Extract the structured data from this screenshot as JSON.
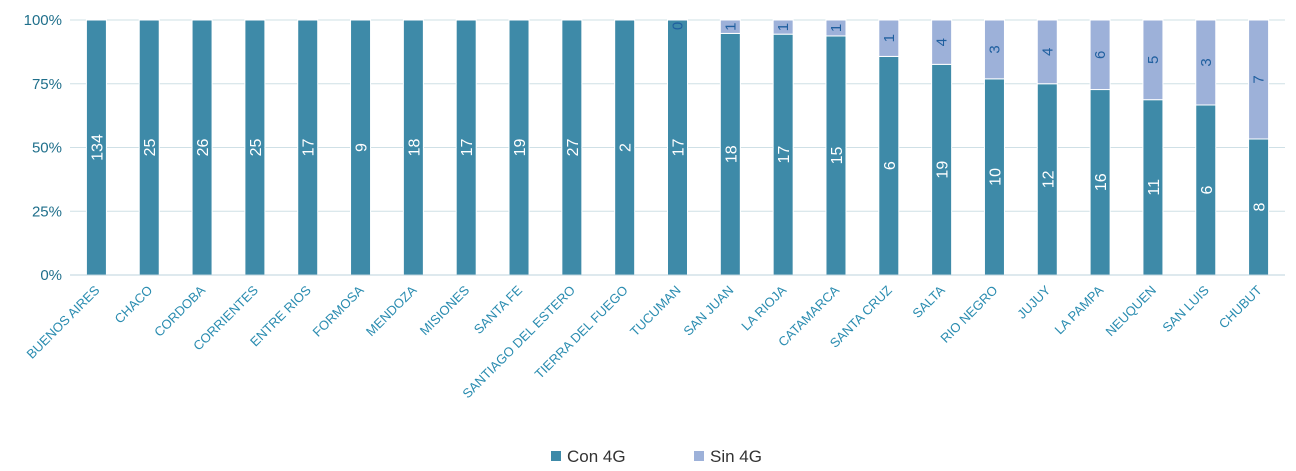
{
  "chart_data": {
    "type": "bar",
    "stacked": "percent",
    "categories": [
      "BUENOS AIRES",
      "CHACO",
      "CORDOBA",
      "CORRIENTES",
      "ENTRE RIOS",
      "FORMOSA",
      "MENDOZA",
      "MISIONES",
      "SANTA FE",
      "SANTIAGO DEL ESTERO",
      "TIERRA DEL FUEGO",
      "TUCUMAN",
      "SAN JUAN",
      "LA RIOJA",
      "CATAMARCA",
      "SANTA CRUZ",
      "SALTA",
      "RIO NEGRO",
      "JUJUY",
      "LA PAMPA",
      "NEUQUEN",
      "SAN LUIS",
      "CHUBUT"
    ],
    "series": [
      {
        "name": "Con 4G",
        "color": "#3e8aa8",
        "values": [
          134,
          25,
          26,
          25,
          17,
          9,
          18,
          17,
          19,
          27,
          2,
          17,
          18,
          17,
          15,
          6,
          19,
          10,
          12,
          16,
          11,
          6,
          8
        ]
      },
      {
        "name": "Sin 4G",
        "color": "#9db1d9",
        "values": [
          null,
          null,
          null,
          null,
          null,
          null,
          null,
          null,
          null,
          null,
          null,
          0,
          1,
          1,
          1,
          1,
          4,
          3,
          4,
          6,
          5,
          3,
          7
        ]
      }
    ],
    "y_ticks": [
      "0%",
      "25%",
      "50%",
      "75%",
      "100%"
    ],
    "ylim": [
      0,
      100
    ],
    "grid": true,
    "legend": "bottom-center",
    "gridline_color": "#cfe0e6"
  }
}
